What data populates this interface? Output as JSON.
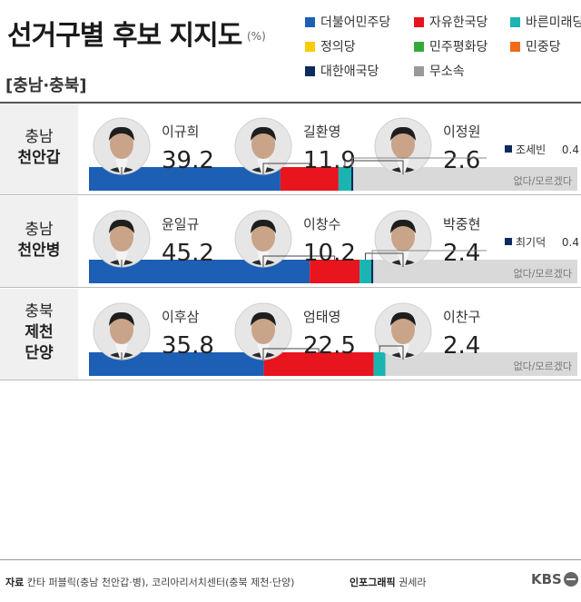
{
  "title": "선거구별 후보 지지도",
  "unit": "(%)",
  "region": "[충남·충북]",
  "legend": [
    {
      "label": "더불어민주당",
      "color": "#1d5fb4"
    },
    {
      "label": "자유한국당",
      "color": "#e8141e"
    },
    {
      "label": "바른미래당",
      "color": "#1ab5b0"
    },
    {
      "label": "정의당",
      "color": "#f9cb00"
    },
    {
      "label": "민주평화당",
      "color": "#36a93c"
    },
    {
      "label": "민중당",
      "color": "#f06a1e"
    },
    {
      "label": "대한애국당",
      "color": "#0c2b60"
    },
    {
      "label": "무소속",
      "color": "#999999"
    }
  ],
  "chart_data": {
    "type": "bar",
    "stacked": true,
    "orientation": "horizontal",
    "xlim": [
      0,
      100
    ],
    "unknown_color": "#d9d9d9",
    "unknown_label": "없다/모르겠다",
    "districts": [
      {
        "region": "충남",
        "district": [
          "천안갑"
        ],
        "candidates": [
          {
            "name": "이규희",
            "value": "39.2",
            "party": "더불어민주당",
            "color": "#1d5fb4"
          },
          {
            "name": "길환영",
            "value": "11.9",
            "party": "자유한국당",
            "color": "#e8141e"
          },
          {
            "name": "이정원",
            "value": "2.6",
            "party": "바른미래당",
            "color": "#1ab5b0"
          }
        ],
        "minor": {
          "name": "조세빈",
          "value": "0.4",
          "party": "대한애국당",
          "color": "#0c2b60"
        }
      },
      {
        "region": "충남",
        "district": [
          "천안병"
        ],
        "candidates": [
          {
            "name": "윤일규",
            "value": "45.2",
            "party": "더불어민주당",
            "color": "#1d5fb4"
          },
          {
            "name": "이창수",
            "value": "10.2",
            "party": "자유한국당",
            "color": "#e8141e"
          },
          {
            "name": "박중현",
            "value": "2.4",
            "party": "바른미래당",
            "color": "#1ab5b0"
          }
        ],
        "minor": {
          "name": "최기덕",
          "value": "0.4",
          "party": "대한애국당",
          "color": "#0c2b60"
        }
      },
      {
        "region": "충북",
        "district": [
          "제천",
          "단양"
        ],
        "candidates": [
          {
            "name": "이후삼",
            "value": "35.8",
            "party": "더불어민주당",
            "color": "#1d5fb4"
          },
          {
            "name": "엄태영",
            "value": "22.5",
            "party": "자유한국당",
            "color": "#e8141e"
          },
          {
            "name": "이찬구",
            "value": "2.4",
            "party": "바른미래당",
            "color": "#1ab5b0"
          }
        ]
      }
    ]
  },
  "footer": {
    "source_label": "자료",
    "source_text": "칸타 퍼블릭(충남 천안갑·병), 코리아리서치센터(충북 제천·단양)",
    "credit_label": "인포그래픽",
    "credit_text": "권세라",
    "brand": "KBS"
  }
}
